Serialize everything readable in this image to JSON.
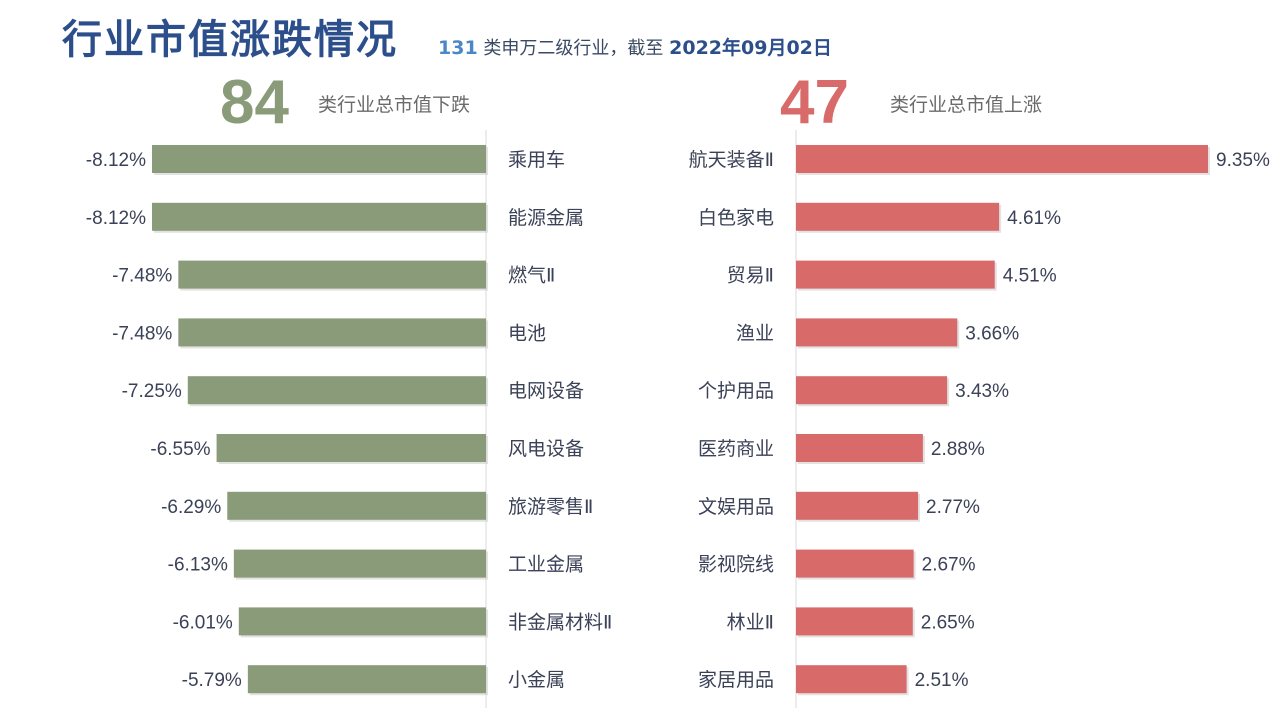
{
  "header": {
    "title": "行业市值涨跌情况",
    "subtitle_count": "131",
    "subtitle_mid": " 类申万二级行业，截至 ",
    "subtitle_date": "2022年09月02日"
  },
  "summary": {
    "down_count": "84",
    "down_label": "类行业总市值下跌",
    "up_count": "47",
    "up_label": "类行业总市值上涨"
  },
  "colors": {
    "down": "#8a9b7a",
    "up": "#d86a6a"
  },
  "chart_data": [
    {
      "type": "bar",
      "orientation": "horizontal",
      "categories": [
        "乘用车",
        "能源金属",
        "燃气Ⅱ",
        "电池",
        "电网设备",
        "风电设备",
        "旅游零售Ⅱ",
        "工业金属",
        "非金属材料Ⅱ",
        "小金属"
      ],
      "values": [
        -8.12,
        -8.12,
        -7.48,
        -7.48,
        -7.25,
        -6.55,
        -6.29,
        -6.13,
        -6.01,
        -5.79
      ],
      "labels": [
        "-8.12%",
        "-8.12%",
        "-7.48%",
        "-7.48%",
        "-7.25%",
        "-6.55%",
        "-6.29%",
        "-6.13%",
        "-6.01%",
        "-5.79%"
      ],
      "unit": "%"
    },
    {
      "type": "bar",
      "orientation": "horizontal",
      "categories": [
        "航天装备Ⅱ",
        "白色家电",
        "贸易Ⅱ",
        "渔业",
        "个护用品",
        "医药商业",
        "文娱用品",
        "影视院线",
        "林业Ⅱ",
        "家居用品"
      ],
      "values": [
        9.35,
        4.61,
        4.51,
        3.66,
        3.43,
        2.88,
        2.77,
        2.67,
        2.65,
        2.51
      ],
      "labels": [
        "9.35%",
        "4.61%",
        "4.51%",
        "3.66%",
        "3.43%",
        "2.88%",
        "2.77%",
        "2.67%",
        "2.65%",
        "2.51%"
      ],
      "unit": "%"
    }
  ]
}
